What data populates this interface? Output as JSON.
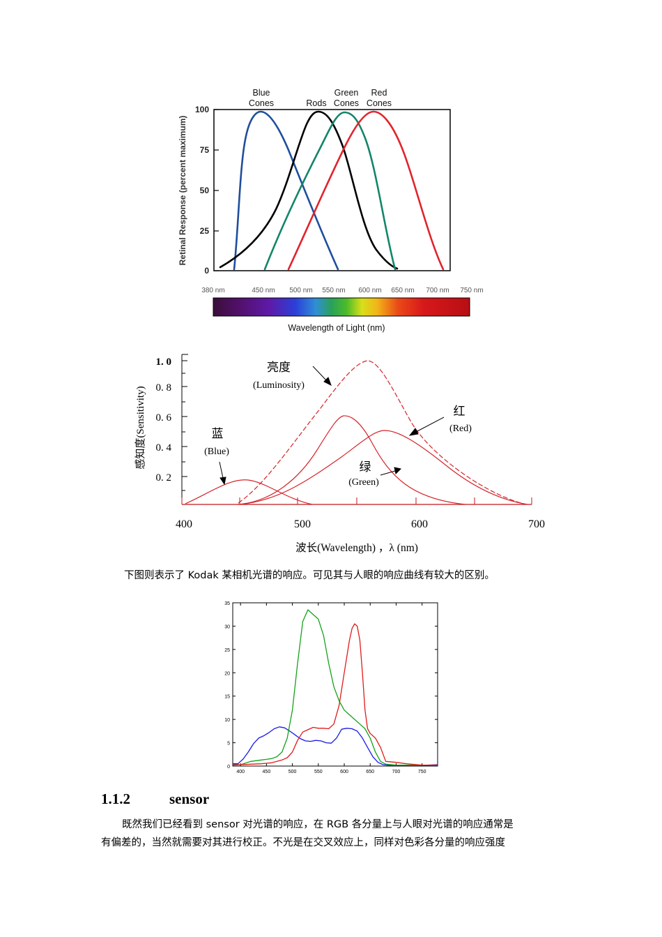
{
  "fig1": {
    "ylabel": "Retinal Response (percent maximum)",
    "yticks": [
      "100",
      "75",
      "50",
      "25",
      "0"
    ],
    "xticks": [
      "380 nm",
      "450 nm",
      "500 nm",
      "550 nm",
      "600 nm",
      "650 nm",
      "700 nm",
      "750 nm"
    ],
    "xlabel": "Wavelength of Light (nm)",
    "labels": {
      "blue1": "Blue",
      "blue2": "Cones",
      "rods": "Rods",
      "green1": "Green",
      "green2": "Cones",
      "red1": "Red",
      "red2": "Cones"
    },
    "colors": {
      "blue": "#1f4e9c",
      "rods": "#000000",
      "green": "#13856a",
      "red": "#e0242c"
    }
  },
  "fig2": {
    "ylabel": "感知度(Sensitivity)",
    "yticks": [
      "1. 0",
      "0. 8",
      "0. 6",
      "0. 4",
      "0. 2"
    ],
    "xticks": [
      "400",
      "500",
      "600",
      "700"
    ],
    "xlabel": "波长(Wavelength) ，λ (nm)",
    "labels": {
      "lum_cn": "亮度",
      "lum_en": "(Luminosity)",
      "red_cn": "红",
      "red_en": "(Red)",
      "blue_cn": "蓝",
      "blue_en": "(Blue)",
      "green_cn": "绿",
      "green_en": "(Green)"
    }
  },
  "caption": "下图则表示了 Kodak 某相机光谱的响应。可见其与人眼的响应曲线有较大的区别。",
  "chart_data": {
    "type": "line",
    "title": "",
    "xlabel": "",
    "ylabel": "",
    "xlim": [
      385,
      780
    ],
    "ylim": [
      0,
      35
    ],
    "xticks": [
      400,
      450,
      500,
      550,
      600,
      650,
      700,
      750
    ],
    "yticks": [
      0,
      5,
      10,
      15,
      20,
      25,
      30,
      35
    ],
    "series": [
      {
        "name": "blue",
        "color": "#1a1ae6",
        "x": [
          385,
          395,
          405,
          415,
          425,
          435,
          445,
          455,
          465,
          475,
          485,
          495,
          505,
          515,
          525,
          535,
          545,
          555,
          565,
          575,
          585,
          595,
          605,
          615,
          625,
          635,
          645,
          655,
          665,
          675,
          685,
          700,
          720,
          740,
          760,
          780
        ],
        "y": [
          0.5,
          0.5,
          1.5,
          3.0,
          4.8,
          6.0,
          6.5,
          7.2,
          8.0,
          8.4,
          8.2,
          7.5,
          6.7,
          5.9,
          5.4,
          5.3,
          5.5,
          5.4,
          5.0,
          4.9,
          6.0,
          7.9,
          8.1,
          8.0,
          7.5,
          6.0,
          4.0,
          2.0,
          0.8,
          0.3,
          0.2,
          0.2,
          0.2,
          0.2,
          0.2,
          0.3
        ]
      },
      {
        "name": "green",
        "color": "#13a31a",
        "x": [
          385,
          400,
          420,
          440,
          460,
          470,
          480,
          490,
          500,
          510,
          520,
          530,
          535,
          540,
          550,
          560,
          570,
          580,
          590,
          600,
          610,
          620,
          630,
          640,
          650,
          660,
          670,
          680,
          700,
          720,
          750,
          780
        ],
        "y": [
          0.2,
          0.3,
          1.0,
          1.3,
          1.6,
          2.0,
          3.0,
          6.0,
          12.0,
          22.0,
          31.0,
          33.5,
          33.0,
          32.5,
          31.5,
          28.0,
          22.0,
          17.0,
          14.0,
          12.0,
          11.0,
          10.0,
          9.0,
          8.0,
          6.0,
          3.0,
          1.0,
          0.4,
          0.2,
          0.2,
          0.2,
          0.2
        ]
      },
      {
        "name": "red",
        "color": "#e01a1a",
        "x": [
          385,
          400,
          420,
          440,
          460,
          470,
          480,
          490,
          500,
          510,
          520,
          530,
          540,
          550,
          560,
          570,
          580,
          590,
          600,
          610,
          615,
          620,
          625,
          630,
          635,
          640,
          645,
          650,
          660,
          670,
          680,
          700,
          720,
          750,
          780
        ],
        "y": [
          0.3,
          0.3,
          0.4,
          0.5,
          0.7,
          1.0,
          1.3,
          1.8,
          3.0,
          5.5,
          7.3,
          7.8,
          8.3,
          8.1,
          8.1,
          8.0,
          9.0,
          13.0,
          20.0,
          27.0,
          29.5,
          30.5,
          30.0,
          27.0,
          20.0,
          12.0,
          8.0,
          7.0,
          6.0,
          4.0,
          1.0,
          0.8,
          0.5,
          0.2,
          0.2
        ]
      }
    ]
  },
  "section": {
    "number": "1.1.2",
    "title": "sensor"
  },
  "paragraph": {
    "line1": "既然我们已经看到 sensor 对光谱的响应，在 RGB 各分量上与人眼对光谱的响应通常是",
    "line2": "有偏差的，当然就需要对其进行校正。不光是在交叉效应上，同样对色彩各分量的响应强度"
  }
}
